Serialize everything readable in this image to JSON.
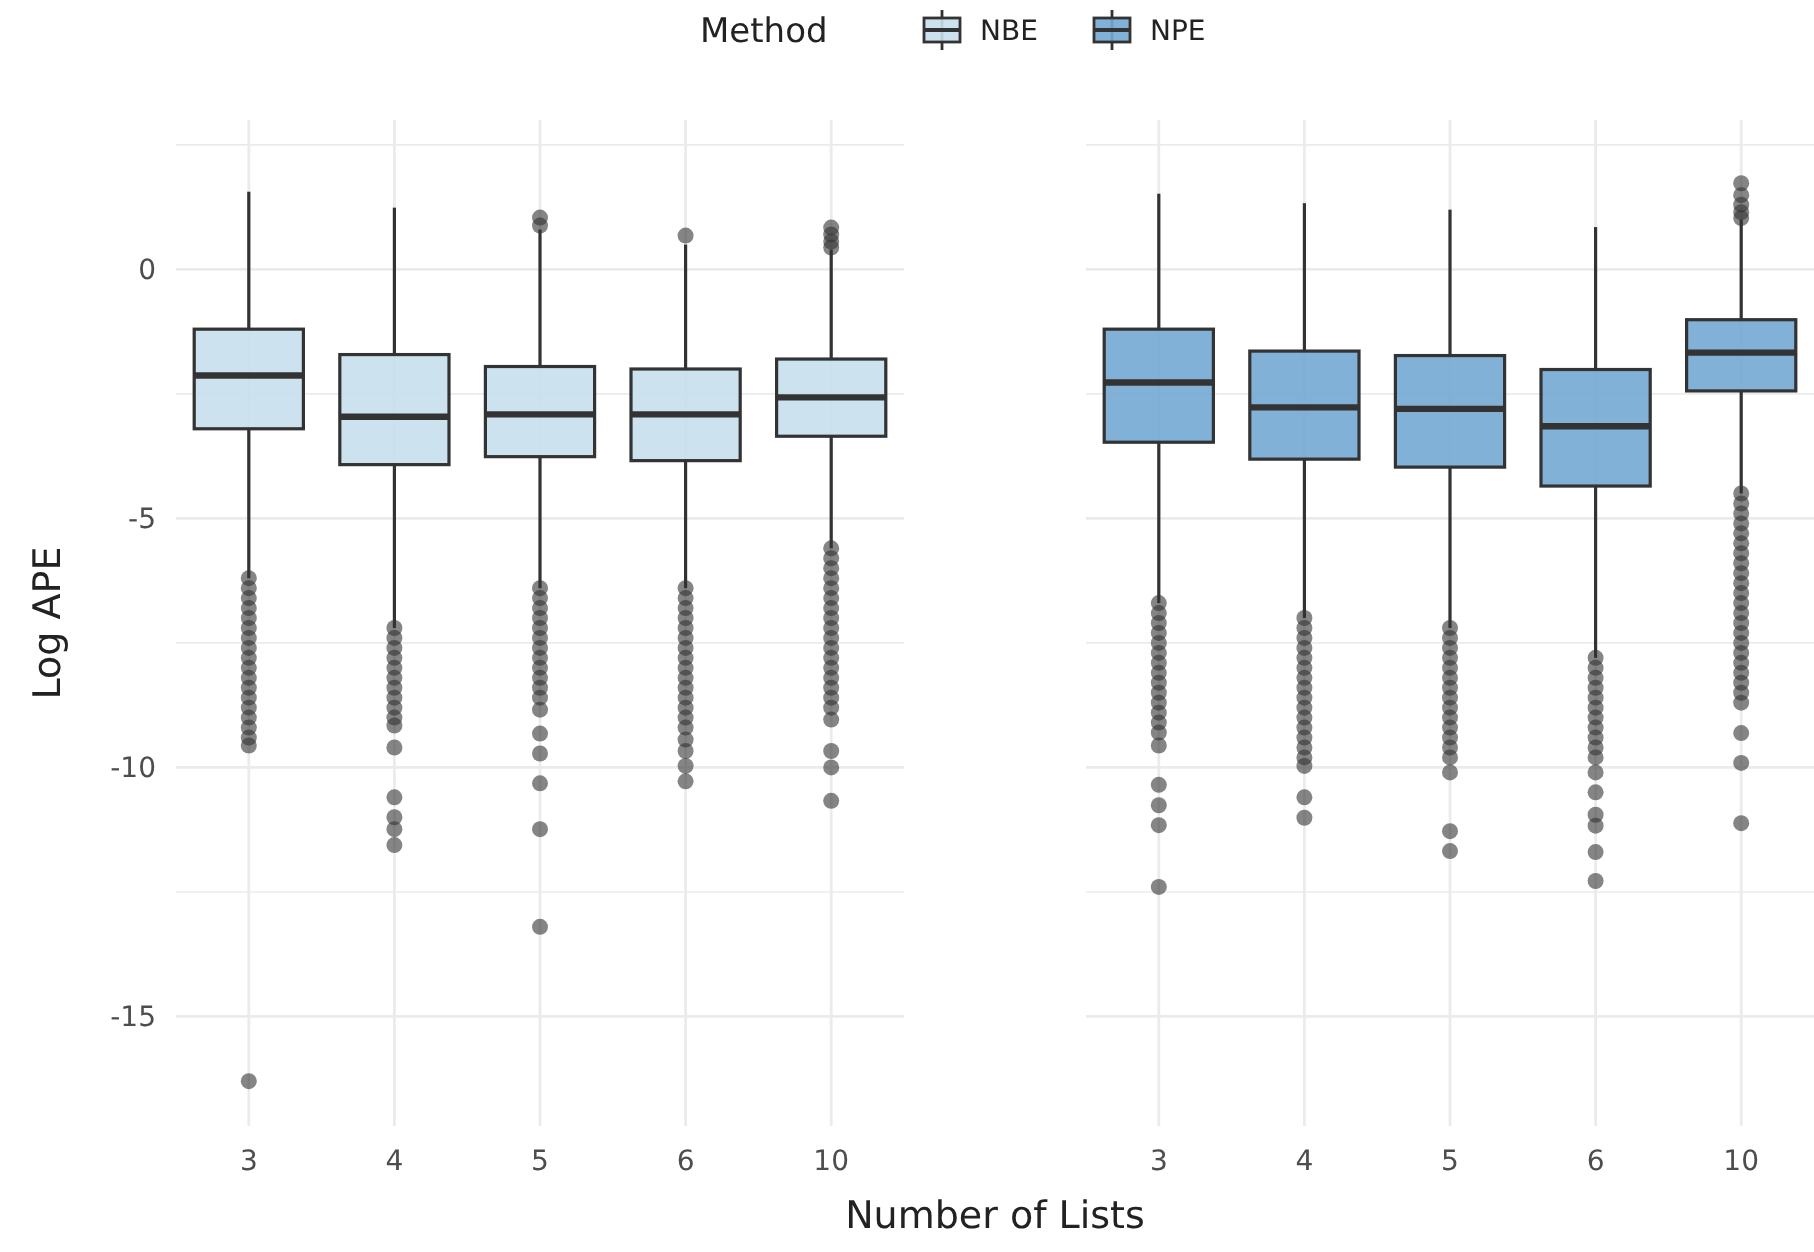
{
  "chart_data": [
    {
      "type": "box",
      "ylabel": "Log APE",
      "xlabel": "Number of Lists",
      "legend_title": "Method",
      "legend": "top",
      "grid": true,
      "tick_labels": "xy",
      "categories": [
        "3",
        "4",
        "5",
        "6",
        "10"
      ],
      "ylim": [
        -17.2,
        3.0
      ],
      "yticks": [
        {
          "value": 2.5,
          "label": null
        },
        0,
        {
          "value": -2.5,
          "label": null
        },
        -5,
        {
          "value": -7.5,
          "label": null
        },
        -10,
        {
          "value": -12.5,
          "label": null
        },
        -15
      ],
      "series": [
        {
          "name": "NBE",
          "color": "#c6dfec",
          "boxes": [
            {
              "low": -6.2,
              "q1": -3.2,
              "median": -2.13,
              "q3": -1.2,
              "high": 1.56,
              "outliers": [
                -6.2,
                -6.4,
                -6.6,
                -6.8,
                -7.0,
                -7.2,
                -7.4,
                -7.6,
                -7.8,
                -8.0,
                -8.2,
                -8.4,
                -8.6,
                -8.8,
                -9.0,
                -9.2,
                -9.4,
                -9.56,
                -16.3
              ]
            },
            {
              "low": -7.2,
              "q1": -3.92,
              "median": -2.96,
              "q3": -1.71,
              "high": 1.24,
              "outliers": [
                -7.2,
                -7.4,
                -7.6,
                -7.8,
                -8.0,
                -8.2,
                -8.4,
                -8.6,
                -8.8,
                -9.0,
                -9.16,
                -9.6,
                -10.6,
                -11.0,
                -11.24,
                -11.56
              ]
            },
            {
              "low": -6.4,
              "q1": -3.76,
              "median": -2.91,
              "q3": -1.95,
              "high": 0.8,
              "outliers": [
                1.04,
                0.88,
                -6.4,
                -6.6,
                -6.8,
                -7.0,
                -7.2,
                -7.4,
                -7.6,
                -7.8,
                -8.0,
                -8.2,
                -8.4,
                -8.6,
                -8.84,
                -9.32,
                -9.72,
                -10.32,
                -11.24,
                -13.2
              ]
            },
            {
              "low": -6.4,
              "q1": -3.84,
              "median": -2.91,
              "q3": -2.0,
              "high": 0.5,
              "outliers": [
                0.68,
                -6.4,
                -6.6,
                -6.8,
                -7.0,
                -7.2,
                -7.4,
                -7.6,
                -7.8,
                -8.0,
                -8.2,
                -8.4,
                -8.6,
                -8.8,
                -9.0,
                -9.2,
                -9.44,
                -9.67,
                -9.97,
                -10.28
              ]
            },
            {
              "low": -5.6,
              "q1": -3.35,
              "median": -2.57,
              "q3": -1.8,
              "high": 0.4,
              "outliers": [
                0.84,
                0.7,
                0.56,
                0.44,
                -5.6,
                -5.8,
                -6.0,
                -6.2,
                -6.4,
                -6.6,
                -6.8,
                -7.0,
                -7.2,
                -7.4,
                -7.6,
                -7.8,
                -8.0,
                -8.2,
                -8.4,
                -8.6,
                -8.8,
                -9.04,
                -9.67,
                -10.0,
                -10.67
              ]
            }
          ]
        }
      ]
    },
    {
      "type": "box",
      "legend": "top",
      "grid": true,
      "tick_labels": "x",
      "categories": [
        "3",
        "4",
        "5",
        "6",
        "10"
      ],
      "ylim": [
        -17.2,
        3.0
      ],
      "yticks": [
        {
          "value": 2.5,
          "label": null
        },
        0,
        {
          "value": -2.5,
          "label": null
        },
        -5,
        {
          "value": -7.5,
          "label": null
        },
        -10,
        {
          "value": -12.5,
          "label": null
        },
        -15
      ],
      "series": [
        {
          "name": "NPE",
          "color": "#73a9d2",
          "boxes": [
            {
              "low": -6.7,
              "q1": -3.47,
              "median": -2.27,
              "q3": -1.2,
              "high": 1.52,
              "outliers": [
                -6.7,
                -6.9,
                -7.1,
                -7.3,
                -7.5,
                -7.7,
                -7.9,
                -8.1,
                -8.3,
                -8.5,
                -8.7,
                -8.9,
                -9.1,
                -9.3,
                -9.56,
                -10.35,
                -10.76,
                -11.16,
                -12.4
              ]
            },
            {
              "low": -7.0,
              "q1": -3.81,
              "median": -2.77,
              "q3": -1.64,
              "high": 1.33,
              "outliers": [
                -7.0,
                -7.2,
                -7.4,
                -7.6,
                -7.8,
                -8.0,
                -8.2,
                -8.4,
                -8.6,
                -8.8,
                -9.0,
                -9.2,
                -9.4,
                -9.6,
                -9.8,
                -9.97,
                -10.6,
                -11.01
              ]
            },
            {
              "low": -7.2,
              "q1": -3.97,
              "median": -2.8,
              "q3": -1.73,
              "high": 1.2,
              "outliers": [
                -7.2,
                -7.4,
                -7.6,
                -7.8,
                -8.0,
                -8.2,
                -8.4,
                -8.6,
                -8.8,
                -9.0,
                -9.2,
                -9.4,
                -9.6,
                -9.8,
                -10.1,
                -11.28,
                -11.68
              ]
            },
            {
              "low": -7.8,
              "q1": -4.35,
              "median": -3.15,
              "q3": -2.01,
              "high": 0.85,
              "outliers": [
                -7.8,
                -8.0,
                -8.2,
                -8.4,
                -8.6,
                -8.8,
                -9.0,
                -9.2,
                -9.4,
                -9.6,
                -9.8,
                -10.1,
                -10.5,
                -10.95,
                -11.17,
                -11.7,
                -12.28
              ]
            },
            {
              "low": -4.5,
              "q1": -2.44,
              "median": -1.67,
              "q3": -1.01,
              "high": 1.0,
              "outliers": [
                1.73,
                1.49,
                1.3,
                1.15,
                1.03,
                -4.5,
                -4.7,
                -4.9,
                -5.1,
                -5.3,
                -5.5,
                -5.7,
                -5.9,
                -6.1,
                -6.3,
                -6.5,
                -6.7,
                -6.9,
                -7.1,
                -7.3,
                -7.5,
                -7.7,
                -7.9,
                -8.1,
                -8.3,
                -8.5,
                -8.7,
                -9.31,
                -9.91,
                -11.12
              ]
            }
          ]
        }
      ]
    }
  ]
}
